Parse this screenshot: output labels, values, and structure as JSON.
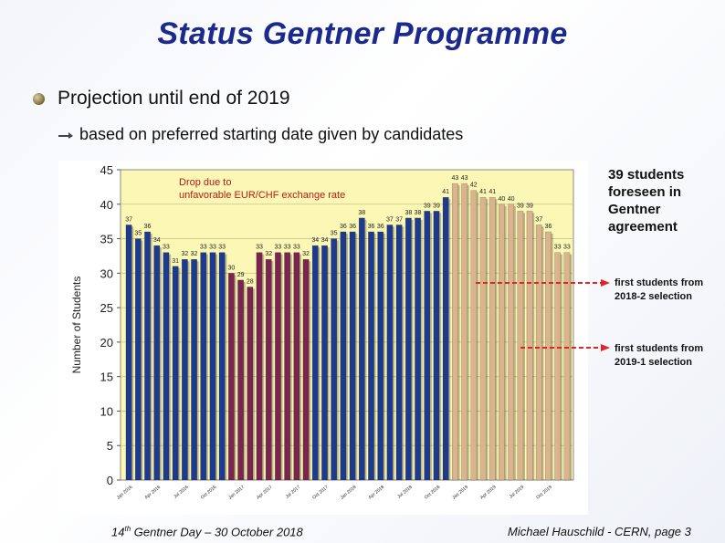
{
  "slide": {
    "title": "Status Gentner Programme",
    "bullet1": "Projection until end of 2019",
    "bullet2": "based on preferred starting date given by candidates",
    "note_39": "39 students foreseen in Gentner agreement",
    "note_2018": "first students from 2018-2 selection",
    "note_2019": "first students from 2019-1 selection",
    "footer_left_prefix": "14",
    "footer_left_sup": "th",
    "footer_left_rest": " Gentner Day – 30 October 2018",
    "footer_right": "Michael Hauschild - CERN, page 3"
  },
  "chart_data": {
    "type": "bar",
    "ylabel": "Number of Students",
    "ylim": [
      0,
      45
    ],
    "yticks": [
      0,
      5,
      10,
      15,
      20,
      25,
      30,
      35,
      40,
      45
    ],
    "annotation": "Drop due to unfavorable EUR/CHF exchange rate",
    "values": [
      37,
      35,
      36,
      34,
      33,
      31,
      32,
      32,
      33,
      33,
      33,
      30,
      29,
      28,
      33,
      32,
      33,
      33,
      33,
      32,
      34,
      34,
      35,
      36,
      36,
      38,
      36,
      36,
      37,
      37,
      38,
      38,
      39,
      39,
      41,
      43,
      43,
      42,
      41,
      41,
      40,
      40,
      39,
      39,
      37,
      36,
      33,
      33
    ],
    "groups": [
      0,
      0,
      0,
      0,
      0,
      0,
      0,
      0,
      0,
      0,
      0,
      1,
      1,
      1,
      1,
      1,
      1,
      1,
      1,
      1,
      2,
      2,
      2,
      2,
      2,
      2,
      2,
      2,
      2,
      2,
      2,
      2,
      2,
      2,
      2,
      3,
      3,
      3,
      3,
      3,
      3,
      3,
      3,
      3,
      3,
      3,
      3,
      3
    ],
    "group_colors": [
      "#1e3a8e",
      "#7a2450",
      "#1e3a8e",
      "#d9b48e"
    ],
    "tick_labels": [
      "Jan 2016",
      "Apr 2016",
      "Jul 2016",
      "Oct 2016",
      "Jan 2017",
      "Apr 2017",
      "Jul 2017",
      "Oct 2017",
      "Jan 2018",
      "Apr 2018",
      "Jul 2018",
      "Oct 2018",
      "Jan 2019",
      "Apr 2019",
      "Jul 2019",
      "Oct 2019"
    ]
  }
}
